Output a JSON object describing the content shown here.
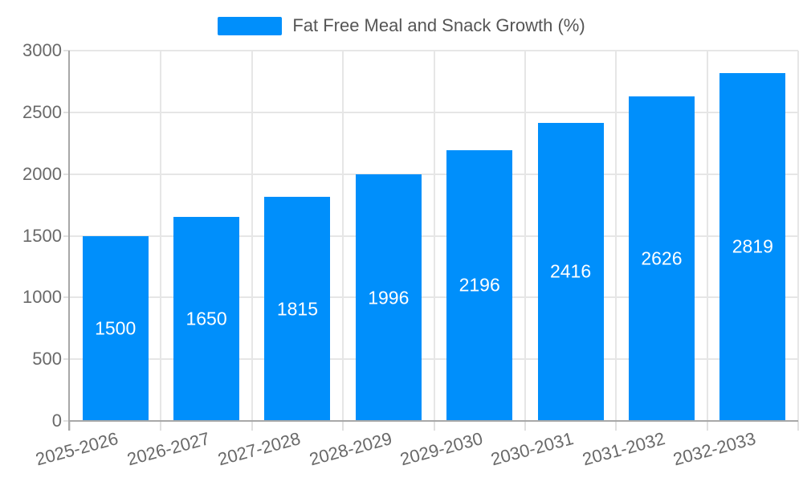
{
  "legend": {
    "label": "Fat Free Meal and Snack Growth (%)",
    "swatch_color": "#008FFB"
  },
  "chart_data": {
    "type": "bar",
    "title": "Fat Free Meal and Snack Growth (%)",
    "categories": [
      "2025-2026",
      "2026-2027",
      "2027-2028",
      "2028-2029",
      "2029-2030",
      "2030-2031",
      "2031-2032",
      "2032-2033"
    ],
    "series": [
      {
        "name": "Fat Free Meal and Snack Growth (%)",
        "values": [
          1500,
          1650,
          1815,
          1996,
          2196,
          2416,
          2626,
          2819
        ]
      }
    ],
    "xlabel": "",
    "ylabel": "",
    "ylim": [
      0,
      3000
    ],
    "y_ticks": [
      0,
      500,
      1000,
      1500,
      2000,
      2500,
      3000
    ],
    "grid": "both",
    "legend_position": "top",
    "value_labels_inside_bars": true
  },
  "colors": {
    "bar": "#008FFB",
    "grid": "#e6e6e6",
    "tick": "#e0e0e0",
    "axis_line": "#a8a8a8",
    "axis_label": "#696969",
    "legend_text": "#555555",
    "value_label": "#ffffff",
    "background": "#ffffff"
  }
}
